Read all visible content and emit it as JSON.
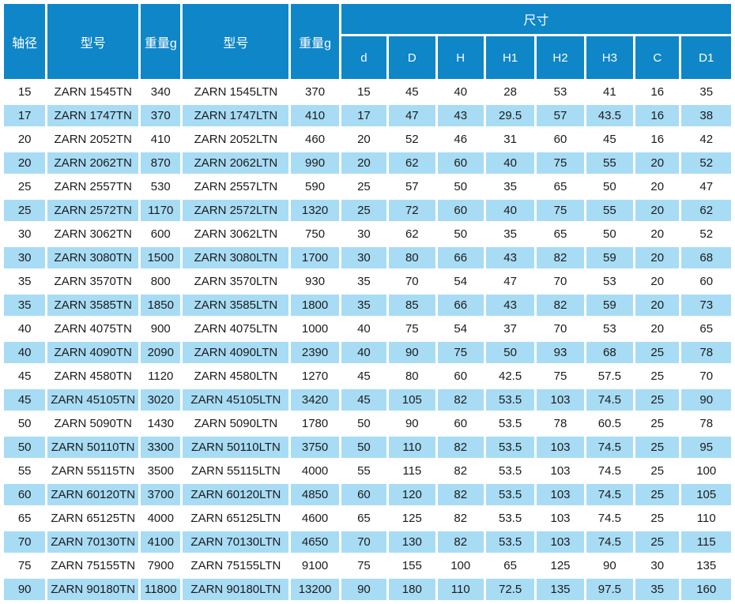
{
  "table": {
    "header": {
      "shaft_diameter": "轴径",
      "model_tn": "型号",
      "weight_tn": "重量g",
      "model_ltn": "型号",
      "weight_ltn": "重量g",
      "dimensions_group": "尺寸",
      "dims": [
        "d",
        "D",
        "H",
        "H1",
        "H2",
        "H3",
        "C",
        "D1"
      ]
    },
    "rows": [
      [
        15,
        "ZARN 1545TN",
        340,
        "ZARN 1545LTN",
        370,
        15,
        45,
        40,
        28,
        53,
        41,
        16,
        35
      ],
      [
        17,
        "ZARN 1747TN",
        370,
        "ZARN 1747LTN",
        410,
        17,
        47,
        43,
        29.5,
        57,
        43.5,
        16,
        38
      ],
      [
        20,
        "ZARN 2052TN",
        410,
        "ZARN 2052LTN",
        460,
        20,
        52,
        46,
        31,
        60,
        45,
        16,
        42
      ],
      [
        20,
        "ZARN 2062TN",
        870,
        "ZARN 2062LTN",
        990,
        20,
        62,
        60,
        40,
        75,
        55,
        20,
        52
      ],
      [
        25,
        "ZARN 2557TN",
        530,
        "ZARN 2557LTN",
        590,
        25,
        57,
        50,
        35,
        65,
        50,
        20,
        47
      ],
      [
        25,
        "ZARN 2572TN",
        1170,
        "ZARN 2572LTN",
        1320,
        25,
        72,
        60,
        40,
        75,
        55,
        20,
        62
      ],
      [
        30,
        "ZARN 3062TN",
        600,
        "ZARN 3062LTN",
        750,
        30,
        62,
        50,
        35,
        65,
        50,
        20,
        52
      ],
      [
        30,
        "ZARN 3080TN",
        1500,
        "ZARN 3080LTN",
        1700,
        30,
        80,
        66,
        43,
        82,
        59,
        20,
        68
      ],
      [
        35,
        "ZARN 3570TN",
        800,
        "ZARN 3570LTN",
        930,
        35,
        70,
        54,
        47,
        70,
        53,
        20,
        60
      ],
      [
        35,
        "ZARN 3585TN",
        1850,
        "ZARN 3585LTN",
        1800,
        35,
        85,
        66,
        43,
        82,
        59,
        20,
        73
      ],
      [
        40,
        "ZARN 4075TN",
        900,
        "ZARN 4075LTN",
        1000,
        40,
        75,
        54,
        37,
        70,
        53,
        20,
        65
      ],
      [
        40,
        "ZARN 4090TN",
        2090,
        "ZARN 4090LTN",
        2390,
        40,
        90,
        75,
        50,
        93,
        68,
        25,
        78
      ],
      [
        45,
        "ZARN 4580TN",
        1120,
        "ZARN 4580LTN",
        1270,
        45,
        80,
        60,
        42.5,
        75,
        57.5,
        25,
        70
      ],
      [
        45,
        "ZARN 45105TN",
        3020,
        "ZARN 45105LTN",
        3420,
        45,
        105,
        82,
        53.5,
        103,
        74.5,
        25,
        90
      ],
      [
        50,
        "ZARN 5090TN",
        1430,
        "ZARN 5090LTN",
        1780,
        50,
        90,
        60,
        53.5,
        78,
        60.5,
        25,
        78
      ],
      [
        50,
        "ZARN 50110TN",
        3300,
        "ZARN 50110LTN",
        3750,
        50,
        110,
        82,
        53.5,
        103,
        74.5,
        25,
        95
      ],
      [
        55,
        "ZARN 55115TN",
        3500,
        "ZARN 55115LTN",
        4000,
        55,
        115,
        82,
        53.5,
        103,
        74.5,
        25,
        100
      ],
      [
        60,
        "ZARN 60120TN",
        3700,
        "ZARN 60120LTN",
        4850,
        60,
        120,
        82,
        53.5,
        103,
        74.5,
        25,
        105
      ],
      [
        65,
        "ZARN 65125TN",
        4000,
        "ZARN 65125LTN",
        4600,
        65,
        125,
        82,
        53.5,
        103,
        74.5,
        25,
        110
      ],
      [
        70,
        "ZARN 70130TN",
        4100,
        "ZARN 70130LTN",
        4650,
        70,
        130,
        82,
        53.5,
        103,
        74.5,
        25,
        115
      ],
      [
        75,
        "ZARN 75155TN",
        7900,
        "ZARN 75155LTN",
        9100,
        75,
        155,
        100,
        65,
        125,
        90,
        30,
        135
      ],
      [
        90,
        "ZARN 90180TN",
        11800,
        "ZARN 90180LTN",
        13200,
        90,
        180,
        110,
        72.5,
        135,
        97.5,
        35,
        160
      ]
    ]
  },
  "colors": {
    "header_bg": "#0e86c8",
    "stripe_bg": "#a8dcf5",
    "row_bg": "#ffffff",
    "text": "#1b1b1b",
    "header_text": "#ffffff"
  }
}
